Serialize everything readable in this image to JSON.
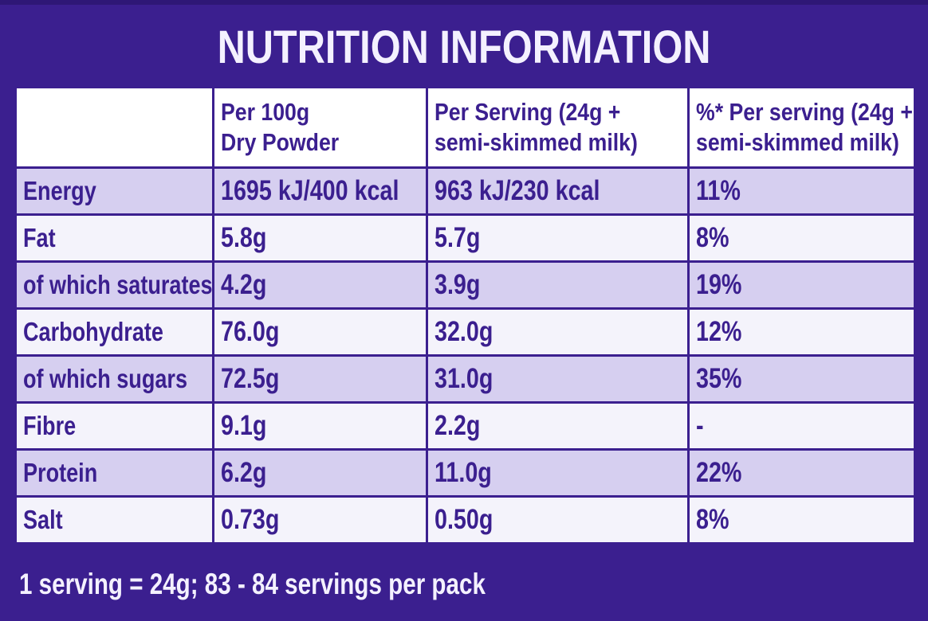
{
  "title": "NUTRITION INFORMATION",
  "headers": [
    "",
    "Per 100g\nDry Powder",
    "Per Serving (24g +\nsemi-skimmed milk)",
    "%* Per serving (24g +\nsemi-skimmed milk)"
  ],
  "header_lines": {
    "col1": [
      "Per 100g",
      "Dry Powder"
    ],
    "col2": [
      "Per Serving (24g +",
      "semi-skimmed milk)"
    ],
    "col3": [
      "%* Per serving (24g +",
      "semi-skimmed milk)"
    ]
  },
  "rows": [
    {
      "label": "Energy",
      "per100": "1695 kJ/400 kcal",
      "serving": "963 kJ/230 kcal",
      "pct": "11%"
    },
    {
      "label": "Fat",
      "per100": "5.8g",
      "serving": "5.7g",
      "pct": "8%"
    },
    {
      "label": "of which saturates",
      "per100": "4.2g",
      "serving": "3.9g",
      "pct": "19%"
    },
    {
      "label": "Carbohydrate",
      "per100": "76.0g",
      "serving": "32.0g",
      "pct": "12%"
    },
    {
      "label": "of which sugars",
      "per100": "72.5g",
      "serving": "31.0g",
      "pct": "35%"
    },
    {
      "label": "Fibre",
      "per100": "9.1g",
      "serving": "2.2g",
      "pct": "-"
    },
    {
      "label": "Protein",
      "per100": "6.2g",
      "serving": "11.0g",
      "pct": "22%"
    },
    {
      "label": "Salt",
      "per100": "0.73g",
      "serving": "0.50g",
      "pct": "8%"
    }
  ],
  "footnote": "1 serving = 24g; 83 - 84 servings per pack",
  "colors": {
    "brand_purple": "#3b1f8f",
    "row_shade": "#d6cff0",
    "row_plain": "#f4f3fb"
  }
}
